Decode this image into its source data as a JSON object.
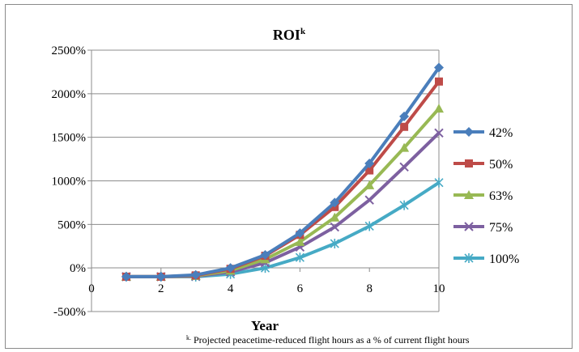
{
  "chart_data": {
    "type": "line",
    "title": "ROI",
    "title_superscript": "k",
    "xlabel": "Year",
    "ylabel": "",
    "x_ticks": [
      0,
      2,
      4,
      6,
      8,
      10
    ],
    "y_ticks": [
      "-500%",
      "0%",
      "500%",
      "1000%",
      "1500%",
      "2000%",
      "2500%"
    ],
    "xlim": [
      0,
      10
    ],
    "ylim": [
      -500,
      2500
    ],
    "grid": "horizontal",
    "legend_position": "right",
    "x": [
      1,
      2,
      3,
      4,
      5,
      6,
      7,
      8,
      9,
      10
    ],
    "series": [
      {
        "name": "42%",
        "color": "#4a7ebb",
        "marker": "diamond",
        "values": [
          -100,
          -100,
          -80,
          0,
          150,
          400,
          750,
          1200,
          1740,
          2300
        ]
      },
      {
        "name": "50%",
        "color": "#be4b48",
        "marker": "square",
        "values": [
          -100,
          -100,
          -85,
          -10,
          140,
          380,
          700,
          1120,
          1620,
          2140
        ]
      },
      {
        "name": "63%",
        "color": "#98b954",
        "marker": "triangle",
        "values": [
          -100,
          -100,
          -90,
          -30,
          100,
          300,
          580,
          950,
          1380,
          1830
        ]
      },
      {
        "name": "75%",
        "color": "#7d60a0",
        "marker": "x",
        "values": [
          -100,
          -100,
          -95,
          -45,
          60,
          240,
          470,
          780,
          1160,
          1550
        ]
      },
      {
        "name": "100%",
        "color": "#46aac5",
        "marker": "star",
        "values": [
          -100,
          -100,
          -100,
          -70,
          0,
          120,
          280,
          480,
          720,
          980
        ]
      }
    ],
    "footnote_marker": "k.",
    "footnote": "Projected peacetime-reduced flight hours as a % of current flight hours"
  }
}
